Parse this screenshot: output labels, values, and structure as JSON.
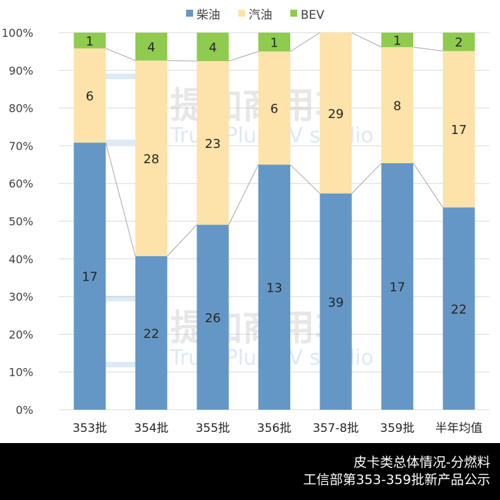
{
  "chart_data": {
    "type": "bar",
    "stacked": "percent",
    "categories": [
      "353批",
      "354批",
      "355批",
      "356批",
      "357-8批",
      "359批",
      "半年均值"
    ],
    "series": [
      {
        "name": "柴油",
        "color": "#6497c5",
        "values": [
          17,
          22,
          26,
          13,
          39,
          17,
          22
        ]
      },
      {
        "name": "汽油",
        "color": "#fde2a9",
        "values": [
          6,
          28,
          23,
          6,
          29,
          8,
          17
        ]
      },
      {
        "name": "BEV",
        "color": "#8ecb4f",
        "values": [
          1,
          4,
          4,
          1,
          0,
          1,
          2
        ]
      }
    ],
    "ylim": [
      0,
      100
    ],
    "yticks": [
      "0%",
      "10%",
      "20%",
      "30%",
      "40%",
      "50%",
      "60%",
      "70%",
      "80%",
      "90%",
      "100%"
    ],
    "legend": "top",
    "grid": true,
    "series_lines": true
  },
  "watermark": {
    "cn": "提加商用车",
    "en": "TruckPlus CV studio"
  },
  "footer": {
    "line1": "皮卡类总体情况-分燃料",
    "line2": "工信部第353-359批新产品公示"
  }
}
